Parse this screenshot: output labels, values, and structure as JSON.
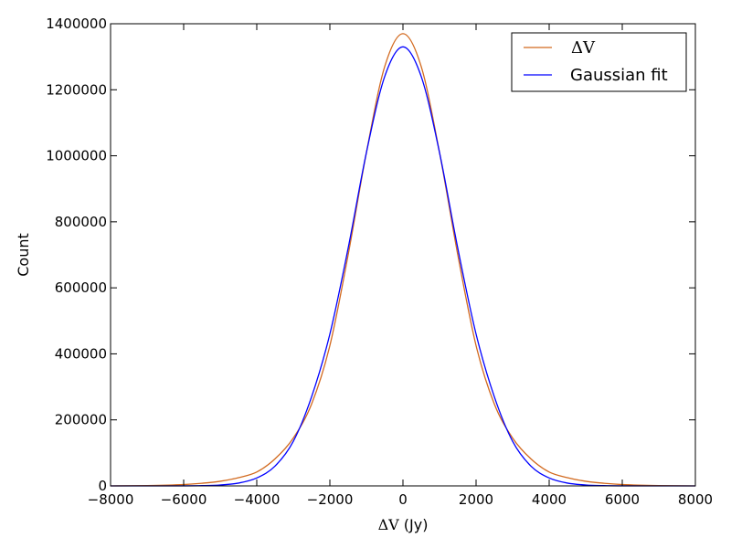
{
  "chart_data": {
    "type": "line",
    "title": "",
    "xlabel": "ΔV (Jy)",
    "xlabel_symbol": "ΔV",
    "xlabel_unit": " (Jy)",
    "ylabel": "Count",
    "xlim": [
      -8000,
      8000
    ],
    "ylim": [
      0,
      1400000
    ],
    "xticks": [
      -8000,
      -6000,
      -4000,
      -2000,
      0,
      2000,
      4000,
      6000,
      8000
    ],
    "xtick_labels": [
      "−8000",
      "−6000",
      "−4000",
      "−2000",
      "0",
      "2000",
      "4000",
      "6000",
      "8000"
    ],
    "yticks": [
      0,
      200000,
      400000,
      600000,
      800000,
      1000000,
      1200000,
      1400000
    ],
    "ytick_labels": [
      "0",
      "200000",
      "400000",
      "600000",
      "800000",
      "1000000",
      "1200000",
      "1400000"
    ],
    "grid": false,
    "legend_position": "top-right",
    "series": [
      {
        "name": "ΔV",
        "color": "#d2691e",
        "x": [
          -8000,
          -7000,
          -6000,
          -5500,
          -5000,
          -4500,
          -4000,
          -3500,
          -3000,
          -2500,
          -2000,
          -1500,
          -1000,
          -500,
          0,
          500,
          1000,
          1500,
          2000,
          2500,
          3000,
          3500,
          4000,
          4500,
          5000,
          5500,
          6000,
          7000,
          8000
        ],
        "y": [
          0,
          1000,
          4000,
          8000,
          14000,
          25000,
          42000,
          82000,
          145000,
          248000,
          425000,
          700000,
          1010000,
          1270000,
          1370000,
          1270000,
          1010000,
          700000,
          425000,
          248000,
          145000,
          82000,
          42000,
          25000,
          14000,
          8000,
          4000,
          1000,
          0
        ]
      },
      {
        "name": "Gaussian fit",
        "color": "#0000ff",
        "x": [
          -8000,
          -7000,
          -6000,
          -5500,
          -5000,
          -4500,
          -4000,
          -3500,
          -3000,
          -2500,
          -2000,
          -1500,
          -1000,
          -500,
          0,
          500,
          1000,
          1500,
          2000,
          2500,
          3000,
          3500,
          4000,
          4500,
          5000,
          5500,
          6000,
          7000,
          8000
        ],
        "y": [
          0,
          0,
          200,
          800,
          2800,
          8500,
          24000,
          60000,
          135000,
          270000,
          460000,
          720000,
          1010000,
          1240000,
          1330000,
          1240000,
          1010000,
          720000,
          460000,
          270000,
          135000,
          60000,
          24000,
          8500,
          2800,
          800,
          200,
          0,
          0
        ]
      }
    ]
  }
}
